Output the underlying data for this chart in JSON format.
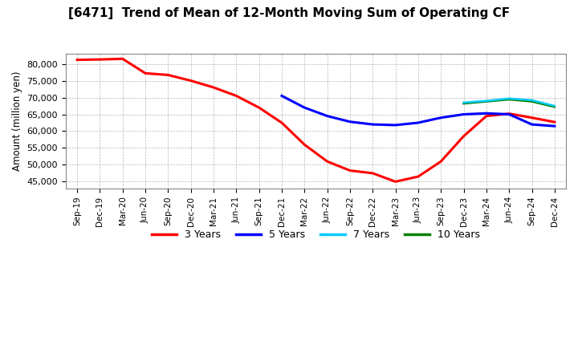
{
  "title": "[6471]  Trend of Mean of 12-Month Moving Sum of Operating CF",
  "ylabel": "Amount (million yen)",
  "background_color": "#ffffff",
  "plot_background": "#ffffff",
  "grid_color": "#999999",
  "x_labels": [
    "Sep-19",
    "Dec-19",
    "Mar-20",
    "Jun-20",
    "Sep-20",
    "Dec-20",
    "Mar-21",
    "Jun-21",
    "Sep-21",
    "Dec-21",
    "Mar-22",
    "Jun-22",
    "Sep-22",
    "Dec-22",
    "Mar-23",
    "Jun-23",
    "Sep-23",
    "Dec-23",
    "Mar-24",
    "Jun-24",
    "Sep-24",
    "Dec-24"
  ],
  "series": {
    "3 Years": {
      "color": "#ff0000",
      "data_x": [
        "Sep-19",
        "Dec-19",
        "Mar-20",
        "Jun-20",
        "Sep-20",
        "Dec-20",
        "Mar-21",
        "Jun-21",
        "Sep-21",
        "Dec-21",
        "Mar-22",
        "Jun-22",
        "Sep-22",
        "Dec-22",
        "Mar-23",
        "Jun-23",
        "Sep-23",
        "Dec-23",
        "Mar-24",
        "Jun-24",
        "Sep-24",
        "Dec-24"
      ],
      "data_y": [
        81200,
        81300,
        81500,
        77200,
        76700,
        75000,
        73000,
        70500,
        67000,
        62500,
        56000,
        51000,
        48300,
        47500,
        45000,
        46500,
        51000,
        58500,
        64500,
        65200,
        64000,
        62700
      ]
    },
    "5 Years": {
      "color": "#0000ff",
      "data_x": [
        "Dec-21",
        "Mar-22",
        "Jun-22",
        "Sep-22",
        "Dec-22",
        "Mar-23",
        "Jun-23",
        "Sep-23",
        "Dec-23",
        "Mar-24",
        "Jun-24",
        "Sep-24",
        "Dec-24"
      ],
      "data_y": [
        70500,
        67000,
        64500,
        62800,
        62000,
        61800,
        62500,
        64000,
        65000,
        65300,
        65000,
        62000,
        61500
      ]
    },
    "7 Years": {
      "color": "#00ccff",
      "data_x": [
        "Dec-23",
        "Mar-24",
        "Jun-24",
        "Sep-24",
        "Dec-24"
      ],
      "data_y": [
        68500,
        69000,
        69700,
        69200,
        67500
      ]
    },
    "10 Years": {
      "color": "#008000",
      "data_x": [
        "Dec-23",
        "Mar-24",
        "Jun-24",
        "Sep-24",
        "Dec-24"
      ],
      "data_y": [
        68200,
        68800,
        69400,
        68800,
        67200
      ]
    }
  },
  "ylim": [
    43000,
    83000
  ],
  "yticks": [
    45000,
    50000,
    55000,
    60000,
    65000,
    70000,
    75000,
    80000
  ],
  "legend_entries": [
    "3 Years",
    "5 Years",
    "7 Years",
    "10 Years"
  ],
  "legend_colors": [
    "#ff0000",
    "#0000ff",
    "#00ccff",
    "#008000"
  ]
}
